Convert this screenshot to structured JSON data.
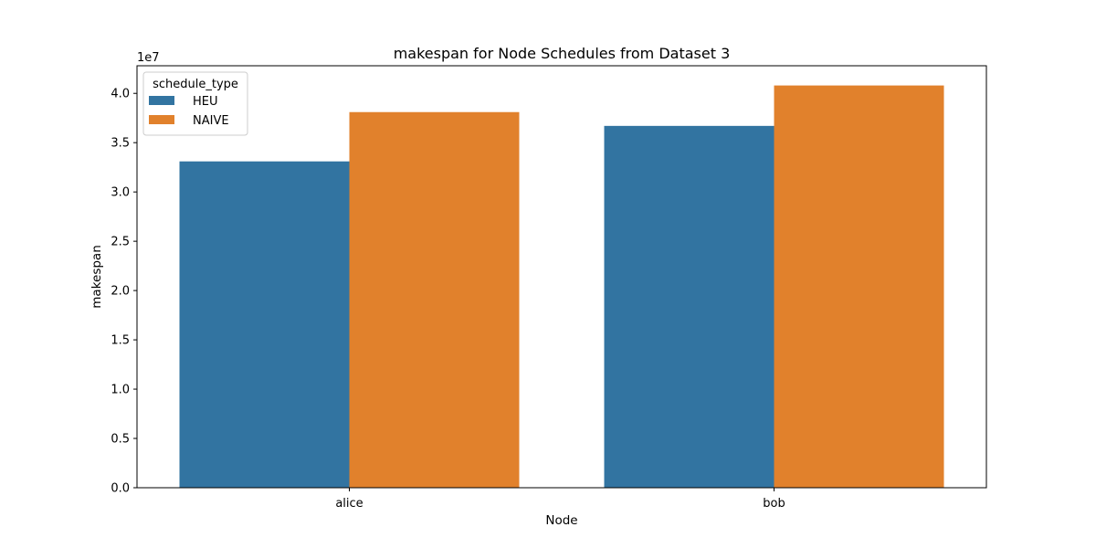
{
  "chart_data": {
    "type": "bar",
    "title": "makespan for Node Schedules from Dataset 3",
    "xlabel": "Node",
    "ylabel": "makespan",
    "y_offset_label": "1e7",
    "y_scale": 10000000,
    "categories": [
      "alice",
      "bob"
    ],
    "series": [
      {
        "name": "HEU",
        "color": "#3274a1",
        "values": [
          33100000,
          36700000
        ]
      },
      {
        "name": "NAIVE",
        "color": "#e1812c",
        "values": [
          38100000,
          40800000
        ]
      }
    ],
    "ylim": [
      0,
      42800000
    ],
    "yticks": [
      0,
      5000000,
      10000000,
      15000000,
      20000000,
      25000000,
      30000000,
      35000000,
      40000000
    ],
    "ytick_labels": [
      "0.0",
      "0.5",
      "1.0",
      "1.5",
      "2.0",
      "2.5",
      "3.0",
      "3.5",
      "4.0"
    ],
    "legend": {
      "title": "schedule_type",
      "position": "top-left"
    },
    "grid": false
  }
}
